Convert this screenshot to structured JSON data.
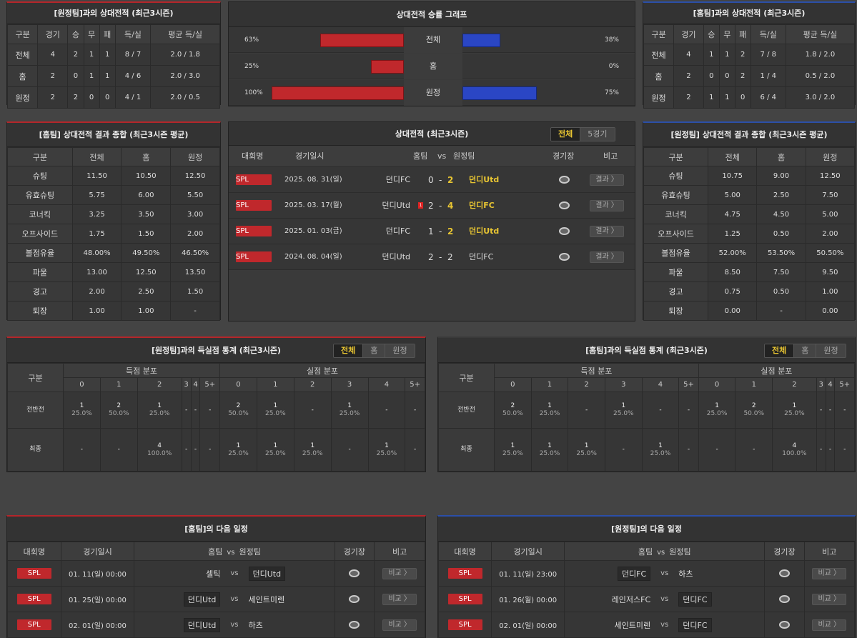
{
  "left_h2h": {
    "title": "[원정팀]과의 상대전적 (최근3시즌)",
    "headers": [
      "구분",
      "경기",
      "승",
      "무",
      "패",
      "득/실",
      "평균 득/실"
    ],
    "rows": [
      [
        "전체",
        "4",
        "2",
        "1",
        "1",
        "8 / 7",
        "2.0 / 1.8"
      ],
      [
        "홈",
        "2",
        "0",
        "1",
        "1",
        "4 / 6",
        "2.0 / 3.0"
      ],
      [
        "원정",
        "2",
        "2",
        "0",
        "0",
        "4 / 1",
        "2.0 / 0.5"
      ]
    ]
  },
  "right_h2h": {
    "title": "[홈팀]과의 상대전적 (최근3시즌)",
    "headers": [
      "구분",
      "경기",
      "승",
      "무",
      "패",
      "득/실",
      "평균 득/실"
    ],
    "rows": [
      [
        "전체",
        "4",
        "1",
        "1",
        "2",
        "7 / 8",
        "1.8 / 2.0"
      ],
      [
        "홈",
        "2",
        "0",
        "0",
        "2",
        "1 / 4",
        "0.5 / 2.0"
      ],
      [
        "원정",
        "2",
        "1",
        "1",
        "0",
        "6 / 4",
        "3.0 / 2.0"
      ]
    ]
  },
  "graph": {
    "title": "상대전적 승률 그래프",
    "rows": [
      {
        "label": "전체",
        "left_pct": "63%",
        "right_pct": "38%",
        "left": 63,
        "right": 38
      },
      {
        "label": "홈",
        "left_pct": "25%",
        "right_pct": "0%",
        "left": 25,
        "right": 0
      },
      {
        "label": "원정",
        "left_pct": "100%",
        "right_pct": "75%",
        "left": 100,
        "right": 75
      }
    ],
    "colors": {
      "home": "#c0282c",
      "away": "#2a46c4"
    }
  },
  "home_summary": {
    "title": "[홈팀] 상대전적 결과 종합 (최근3시즌 평균)",
    "headers": [
      "구분",
      "전체",
      "홈",
      "원정"
    ],
    "rows": [
      [
        "슈팅",
        "11.50",
        "10.50",
        "12.50"
      ],
      [
        "유효슈팅",
        "5.75",
        "6.00",
        "5.50"
      ],
      [
        "코너킥",
        "3.25",
        "3.50",
        "3.00"
      ],
      [
        "오프사이드",
        "1.75",
        "1.50",
        "2.00"
      ],
      [
        "볼점유율",
        "48.00%",
        "49.50%",
        "46.50%"
      ],
      [
        "파울",
        "13.00",
        "12.50",
        "13.50"
      ],
      [
        "경고",
        "2.00",
        "2.50",
        "1.50"
      ],
      [
        "퇴장",
        "1.00",
        "1.00",
        "-"
      ]
    ]
  },
  "away_summary": {
    "title": "[원정팀] 상대전적 결과 종합 (최근3시즌 평균)",
    "headers": [
      "구분",
      "전체",
      "홈",
      "원정"
    ],
    "rows": [
      [
        "슈팅",
        "10.75",
        "9.00",
        "12.50"
      ],
      [
        "유효슈팅",
        "5.00",
        "2.50",
        "7.50"
      ],
      [
        "코너킥",
        "4.75",
        "4.50",
        "5.00"
      ],
      [
        "오프사이드",
        "1.25",
        "0.50",
        "2.00"
      ],
      [
        "볼점유율",
        "52.00%",
        "53.50%",
        "50.50%"
      ],
      [
        "파울",
        "8.50",
        "7.50",
        "9.50"
      ],
      [
        "경고",
        "0.75",
        "0.50",
        "1.00"
      ],
      [
        "퇴장",
        "0.00",
        "-",
        "0.00"
      ]
    ]
  },
  "matches": {
    "title": "상대전적 (최근3시즌)",
    "tabs": [
      "전체",
      "5경기"
    ],
    "headers": {
      "league": "대회명",
      "date": "경기일시",
      "home": "홈팀",
      "vs": "vs",
      "away": "원정팀",
      "stadium": "경기장",
      "note": "비고"
    },
    "rows": [
      {
        "league": "SPL",
        "date": "2025. 08. 31(일)",
        "home": "던디FC",
        "hs": "0",
        "dash": "-",
        "as": "2",
        "away": "던디Utd",
        "card": "",
        "btn": "결과 〉"
      },
      {
        "league": "SPL",
        "date": "2025. 03. 17(월)",
        "home": "던디Utd",
        "hs": "2",
        "dash": "-",
        "as": "4",
        "away": "던디FC",
        "card": "1",
        "btn": "결과 〉"
      },
      {
        "league": "SPL",
        "date": "2025. 01. 03(금)",
        "home": "던디FC",
        "hs": "1",
        "dash": "-",
        "as": "2",
        "away": "던디Utd",
        "card": "",
        "btn": "결과 〉"
      },
      {
        "league": "SPL",
        "date": "2024. 08. 04(일)",
        "home": "던디Utd",
        "hs": "2",
        "dash": "-",
        "as": "2",
        "away": "던디FC",
        "card": "",
        "btn": "결과 〉"
      }
    ]
  },
  "left_dist": {
    "title": "[원정팀]과의 득실점 통계 (최근3시즌)",
    "tabs": [
      "전체",
      "홈",
      "원정"
    ],
    "h_label": "구분",
    "h_scored": "득점 분포",
    "h_conceded": "실점 분포",
    "cols": [
      "0",
      "1",
      "2",
      "3",
      "4",
      "5+",
      "0",
      "1",
      "2",
      "3",
      "4",
      "5+"
    ],
    "rows": [
      {
        "label": "전반전",
        "cells": [
          [
            "1",
            "25.0%"
          ],
          [
            "2",
            "50.0%"
          ],
          [
            "1",
            "25.0%"
          ],
          [
            "-",
            ""
          ],
          [
            "-",
            ""
          ],
          [
            "-",
            ""
          ],
          [
            "2",
            "50.0%"
          ],
          [
            "1",
            "25.0%"
          ],
          [
            "-",
            ""
          ],
          [
            "1",
            "25.0%"
          ],
          [
            "-",
            ""
          ],
          [
            "-",
            ""
          ]
        ]
      },
      {
        "label": "최종",
        "cells": [
          [
            "-",
            ""
          ],
          [
            "-",
            ""
          ],
          [
            "4",
            "100.0%"
          ],
          [
            "-",
            ""
          ],
          [
            "-",
            ""
          ],
          [
            "-",
            ""
          ],
          [
            "1",
            "25.0%"
          ],
          [
            "1",
            "25.0%"
          ],
          [
            "1",
            "25.0%"
          ],
          [
            "-",
            ""
          ],
          [
            "1",
            "25.0%"
          ],
          [
            "-",
            ""
          ]
        ]
      }
    ]
  },
  "right_dist": {
    "title": "[홈팀]과의 득실점 통계 (최근3시즌)",
    "tabs": [
      "전체",
      "홈",
      "원정"
    ],
    "h_label": "구분",
    "h_scored": "득점 분포",
    "h_conceded": "실점 분포",
    "cols": [
      "0",
      "1",
      "2",
      "3",
      "4",
      "5+",
      "0",
      "1",
      "2",
      "3",
      "4",
      "5+"
    ],
    "rows": [
      {
        "label": "전반전",
        "cells": [
          [
            "2",
            "50.0%"
          ],
          [
            "1",
            "25.0%"
          ],
          [
            "-",
            ""
          ],
          [
            "1",
            "25.0%"
          ],
          [
            "-",
            ""
          ],
          [
            "-",
            ""
          ],
          [
            "1",
            "25.0%"
          ],
          [
            "2",
            "50.0%"
          ],
          [
            "1",
            "25.0%"
          ],
          [
            "-",
            ""
          ],
          [
            "-",
            ""
          ],
          [
            "-",
            ""
          ]
        ]
      },
      {
        "label": "최종",
        "cells": [
          [
            "1",
            "25.0%"
          ],
          [
            "1",
            "25.0%"
          ],
          [
            "1",
            "25.0%"
          ],
          [
            "-",
            ""
          ],
          [
            "1",
            "25.0%"
          ],
          [
            "-",
            ""
          ],
          [
            "-",
            ""
          ],
          [
            "-",
            ""
          ],
          [
            "4",
            "100.0%"
          ],
          [
            "-",
            ""
          ],
          [
            "-",
            ""
          ],
          [
            "-",
            ""
          ]
        ]
      }
    ]
  },
  "home_next": {
    "title": "[홈팀]의 다음 일정",
    "headers": {
      "league": "대회명",
      "date": "경기일시",
      "home": "홈팀",
      "vs": "vs",
      "away": "원정팀",
      "stadium": "경기장",
      "note": "비고"
    },
    "rows": [
      {
        "league": "SPL",
        "date": "01. 11(일) 00:00",
        "home": "셀틱",
        "vs": "vs",
        "away": "던디Utd",
        "btn": "비교 〉",
        "hbox": false,
        "abox": true
      },
      {
        "league": "SPL",
        "date": "01. 25(일) 00:00",
        "home": "던디Utd",
        "vs": "vs",
        "away": "세인트미렌",
        "btn": "비교 〉",
        "hbox": true,
        "abox": false
      },
      {
        "league": "SPL",
        "date": "02. 01(일) 00:00",
        "home": "던디Utd",
        "vs": "vs",
        "away": "하츠",
        "btn": "비교 〉",
        "hbox": true,
        "abox": false
      }
    ]
  },
  "away_next": {
    "title": "[원정팀]의 다음 일정",
    "headers": {
      "league": "대회명",
      "date": "경기일시",
      "home": "홈팀",
      "vs": "vs",
      "away": "원정팀",
      "stadium": "경기장",
      "note": "비고"
    },
    "rows": [
      {
        "league": "SPL",
        "date": "01. 11(일) 23:00",
        "home": "던디FC",
        "vs": "vs",
        "away": "하츠",
        "btn": "비교 〉",
        "hbox": true,
        "abox": false
      },
      {
        "league": "SPL",
        "date": "01. 26(월) 00:00",
        "home": "레인저스FC",
        "vs": "vs",
        "away": "던디FC",
        "btn": "비교 〉",
        "hbox": false,
        "abox": true
      },
      {
        "league": "SPL",
        "date": "02. 01(일) 00:00",
        "home": "세인트미렌",
        "vs": "vs",
        "away": "던디FC",
        "btn": "비교 〉",
        "hbox": false,
        "abox": true
      }
    ]
  }
}
